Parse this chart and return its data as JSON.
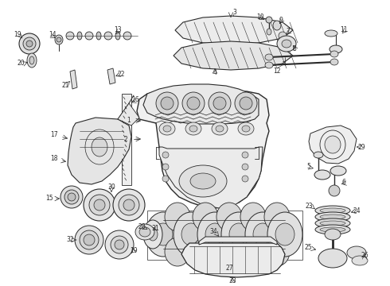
{
  "bg_color": "#ffffff",
  "line_color": "#2a2a2a",
  "fig_w": 4.9,
  "fig_h": 3.6,
  "dpi": 100
}
